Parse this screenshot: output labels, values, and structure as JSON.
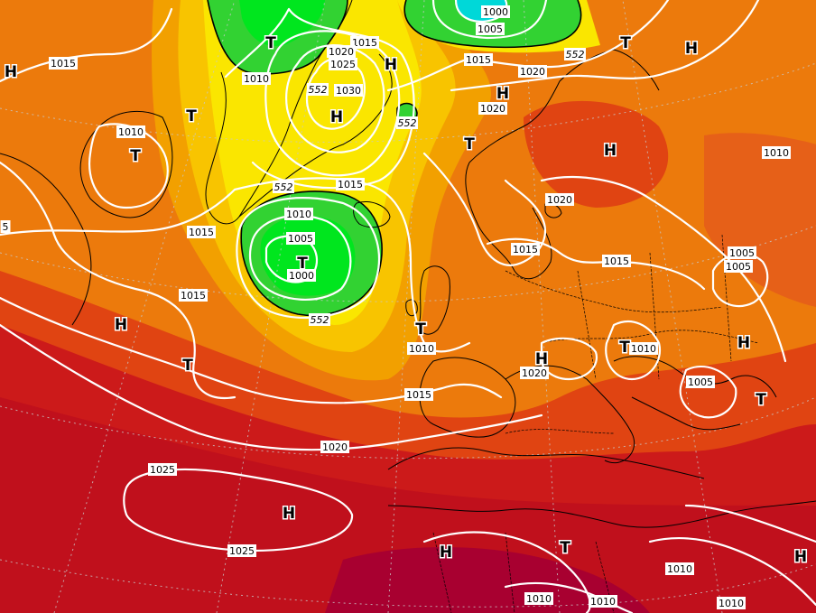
{
  "map": {
    "palette": {
      "sea_deep_red": "#b3001e",
      "dark_red": "#cc1a1a",
      "red_orange": "#e04412",
      "orange": "#ec7a0c",
      "light_orange": "#f2a000",
      "amber": "#f8c400",
      "yellow": "#fae600",
      "light_green": "#9eea00",
      "green": "#32d232",
      "bright_green": "#00e61e",
      "cyan": "#00d8d8",
      "isobar": "#ffffff",
      "coastline": "#000000"
    },
    "centers": [
      {
        "id": "h-nw",
        "letter": "H"
      },
      {
        "id": "t-greenland-north",
        "letter": "T"
      },
      {
        "id": "h-greenland-east",
        "letter": "H"
      },
      {
        "id": "t-scandinavia-north",
        "letter": "T"
      },
      {
        "id": "h-norway-sea",
        "letter": "H"
      },
      {
        "id": "h-northeast",
        "letter": "H"
      },
      {
        "id": "t-canada-east",
        "letter": "T"
      },
      {
        "id": "t-greenland-south",
        "letter": "T"
      },
      {
        "id": "h-greenland-west",
        "letter": "H"
      },
      {
        "id": "t-iceland-low",
        "letter": "T"
      },
      {
        "id": "t-norway",
        "letter": "T"
      },
      {
        "id": "h-russia",
        "letter": "H"
      },
      {
        "id": "h-atlantic-west",
        "letter": "H"
      },
      {
        "id": "t-atlantic-mid",
        "letter": "T"
      },
      {
        "id": "t-uk",
        "letter": "T"
      },
      {
        "id": "h-central-europe",
        "letter": "H"
      },
      {
        "id": "t-balkans",
        "letter": "T"
      },
      {
        "id": "h-ukraine",
        "letter": "H"
      },
      {
        "id": "t-turkey",
        "letter": "T"
      },
      {
        "id": "h-azores",
        "letter": "H"
      },
      {
        "id": "h-north-africa",
        "letter": "H"
      },
      {
        "id": "t-libya",
        "letter": "T"
      },
      {
        "id": "h-east-edge",
        "letter": "H"
      }
    ],
    "isobar_labels": [
      {
        "id": "l-1000-top",
        "text": "1000"
      },
      {
        "id": "l-1005-top",
        "text": "1005"
      },
      {
        "id": "l-1015-nw",
        "text": "1015"
      },
      {
        "id": "l-1010-greenland",
        "text": "1010"
      },
      {
        "id": "l-1015-greenland-e",
        "text": "1015"
      },
      {
        "id": "l-1020-greenland-e",
        "text": "1020"
      },
      {
        "id": "l-1025-greenland-e",
        "text": "1025"
      },
      {
        "id": "l-1030-greenland-e",
        "text": "1030"
      },
      {
        "id": "l-1015-norway-sea",
        "text": "1015"
      },
      {
        "id": "l-1020-norway-sea",
        "text": "1020"
      },
      {
        "id": "l-1020-barents",
        "text": "1020"
      },
      {
        "id": "l-1010-canada",
        "text": "1010"
      },
      {
        "id": "l-1015-iceland-n",
        "text": "1015"
      },
      {
        "id": "l-1010-iceland",
        "text": "1010"
      },
      {
        "id": "l-1005-iceland",
        "text": "1005"
      },
      {
        "id": "l-1000-iceland",
        "text": "1000"
      },
      {
        "id": "l-1015-atlantic-w",
        "text": "1015"
      },
      {
        "id": "l-1015-atlantic-mid",
        "text": "1015"
      },
      {
        "id": "l-1010-russia",
        "text": "1010"
      },
      {
        "id": "l-1020-baltic",
        "text": "1020"
      },
      {
        "id": "l-1015-scandinavia",
        "text": "1015"
      },
      {
        "id": "l-1015-baltic-s",
        "text": "1015"
      },
      {
        "id": "l-1005-east-a",
        "text": "1005"
      },
      {
        "id": "l-1005-east-b",
        "text": "1005"
      },
      {
        "id": "l-1010-uk",
        "text": "1010"
      },
      {
        "id": "l-1020-central",
        "text": "1020"
      },
      {
        "id": "l-1010-balkans",
        "text": "1010"
      },
      {
        "id": "l-1005-black-sea",
        "text": "1005"
      },
      {
        "id": "l-1015-biscay",
        "text": "1015"
      },
      {
        "id": "l-1020-iberia-w",
        "text": "1020"
      },
      {
        "id": "l-1025-azores-n",
        "text": "1025"
      },
      {
        "id": "l-1025-azores-s",
        "text": "1025"
      },
      {
        "id": "l-1010-libya",
        "text": "1010"
      },
      {
        "id": "l-1010-sahara",
        "text": "1010"
      },
      {
        "id": "l-1010-sahara-e",
        "text": "1010"
      },
      {
        "id": "l-1010-egypt",
        "text": "1010"
      },
      {
        "id": "l-5-left",
        "text": "5"
      }
    ],
    "contour_552_labels": [
      {
        "id": "c552-top",
        "text": "552"
      },
      {
        "id": "c552-greenland",
        "text": "552"
      },
      {
        "id": "c552-norway-sea",
        "text": "552"
      },
      {
        "id": "c552-iceland-n",
        "text": "552"
      },
      {
        "id": "c552-iceland-s",
        "text": "552"
      }
    ]
  }
}
